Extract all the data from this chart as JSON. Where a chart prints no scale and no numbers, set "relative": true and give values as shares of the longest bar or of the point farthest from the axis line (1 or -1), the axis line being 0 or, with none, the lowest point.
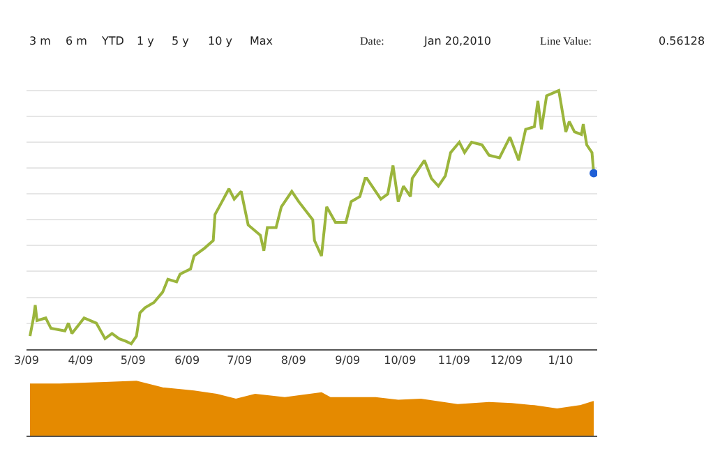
{
  "chart_data": [
    {
      "type": "line",
      "relative": true,
      "grid": "y",
      "tick_labels": "x",
      "marker": "none",
      "line_style": "solid",
      "annotations": [
        "3 m",
        "6 m",
        "YTD",
        "1 y",
        "5 y",
        "10 y",
        "Max",
        "Date:",
        "Jan 20,2010",
        "Line Value:",
        "0.56128"
      ],
      "xlim": [
        "2009-03-01",
        "2010-01-22"
      ],
      "xticks": [
        {
          "value": "2009-03-01",
          "label": "3/09"
        },
        {
          "value": "2009-04-01",
          "label": "4/09"
        },
        {
          "value": "2009-05-01",
          "label": "5/09"
        },
        {
          "value": "2009-06-01",
          "label": "6/09"
        },
        {
          "value": "2009-07-01",
          "label": "7/09"
        },
        {
          "value": "2009-08-01",
          "label": "8/09"
        },
        {
          "value": "2009-09-01",
          "label": "9/09"
        },
        {
          "value": "2009-10-01",
          "label": "10/09"
        },
        {
          "value": "2009-11-01",
          "label": "11/09"
        },
        {
          "value": "2009-12-01",
          "label": "12/09"
        },
        {
          "value": "2010-01-01",
          "label": "1/10"
        }
      ],
      "series": [
        {
          "color": "#9bb53c",
          "x": [
            "2009-03-03",
            "2009-03-05",
            "2009-03-06",
            "2009-03-07",
            "2009-03-12",
            "2009-03-15",
            "2009-03-23",
            "2009-03-25",
            "2009-03-27",
            "2009-04-03",
            "2009-04-10",
            "2009-04-15",
            "2009-04-19",
            "2009-04-23",
            "2009-04-27",
            "2009-04-30",
            "2009-05-03",
            "2009-05-05",
            "2009-05-08",
            "2009-05-13",
            "2009-05-18",
            "2009-05-21",
            "2009-05-26",
            "2009-05-28",
            "2009-06-03",
            "2009-06-05",
            "2009-06-11",
            "2009-06-16",
            "2009-06-17",
            "2009-06-21",
            "2009-06-25",
            "2009-06-28",
            "2009-07-02",
            "2009-07-06",
            "2009-07-13",
            "2009-07-15",
            "2009-07-17",
            "2009-07-22",
            "2009-07-25",
            "2009-07-31",
            "2009-08-04",
            "2009-08-12",
            "2009-08-13",
            "2009-08-17",
            "2009-08-20",
            "2009-08-25",
            "2009-08-31",
            "2009-09-03",
            "2009-09-08",
            "2009-09-11",
            "2009-09-12",
            "2009-09-20",
            "2009-09-24",
            "2009-09-27",
            "2009-09-30",
            "2009-10-03",
            "2009-10-07",
            "2009-10-08",
            "2009-10-15",
            "2009-10-19",
            "2009-10-23",
            "2009-10-27",
            "2009-10-30",
            "2009-11-04",
            "2009-11-07",
            "2009-11-11",
            "2009-11-17",
            "2009-11-21",
            "2009-11-27",
            "2009-12-03",
            "2009-12-08",
            "2009-12-12",
            "2009-12-17",
            "2009-12-19",
            "2009-12-21",
            "2009-12-24",
            "2009-12-31",
            "2010-01-04",
            "2010-01-06",
            "2010-01-09",
            "2010-01-13",
            "2010-01-14",
            "2010-01-16",
            "2010-01-19",
            "2010-01-20"
          ],
          "values": [
            0.05,
            0.12,
            0.17,
            0.11,
            0.12,
            0.08,
            0.07,
            0.1,
            0.06,
            0.12,
            0.1,
            0.04,
            0.06,
            0.04,
            0.03,
            0.02,
            0.05,
            0.14,
            0.16,
            0.18,
            0.22,
            0.27,
            0.26,
            0.29,
            0.31,
            0.36,
            0.39,
            0.42,
            0.52,
            0.57,
            0.62,
            0.58,
            0.61,
            0.48,
            0.44,
            0.38,
            0.47,
            0.47,
            0.55,
            0.61,
            0.57,
            0.5,
            0.42,
            0.36,
            0.55,
            0.49,
            0.49,
            0.57,
            0.59,
            0.66,
            0.66,
            0.58,
            0.6,
            0.71,
            0.57,
            0.63,
            0.59,
            0.66,
            0.73,
            0.66,
            0.63,
            0.67,
            0.76,
            0.8,
            0.76,
            0.8,
            0.79,
            0.75,
            0.74,
            0.82,
            0.73,
            0.85,
            0.86,
            0.96,
            0.85,
            0.98,
            1.0,
            0.84,
            0.88,
            0.84,
            0.83,
            0.87,
            0.79,
            0.76,
            0.68
          ]
        },
        {
          "type": "scatter",
          "marker": "circle",
          "color": "#1f5fd6",
          "x": [
            "2010-01-20"
          ],
          "values": [
            0.68
          ]
        }
      ]
    },
    {
      "type": "area",
      "relative": true,
      "tick_labels": false,
      "grid": false,
      "xlim": [
        "2009-03-01",
        "2010-01-22"
      ],
      "series": [
        {
          "color": "#e58a00",
          "x": [
            "2009-03-03",
            "2009-03-20",
            "2009-04-15",
            "2009-05-03",
            "2009-05-18",
            "2009-06-05",
            "2009-06-18",
            "2009-06-29",
            "2009-07-10",
            "2009-07-27",
            "2009-08-17",
            "2009-08-22",
            "2009-09-17",
            "2009-09-30",
            "2009-10-13",
            "2009-11-03",
            "2009-11-21",
            "2009-12-04",
            "2009-12-17",
            "2009-12-30",
            "2010-01-12",
            "2010-01-20"
          ],
          "values": [
            0.95,
            0.95,
            0.98,
            1.0,
            0.88,
            0.82,
            0.76,
            0.67,
            0.76,
            0.7,
            0.79,
            0.7,
            0.7,
            0.65,
            0.67,
            0.57,
            0.61,
            0.59,
            0.55,
            0.49,
            0.55,
            0.63
          ]
        }
      ]
    }
  ]
}
